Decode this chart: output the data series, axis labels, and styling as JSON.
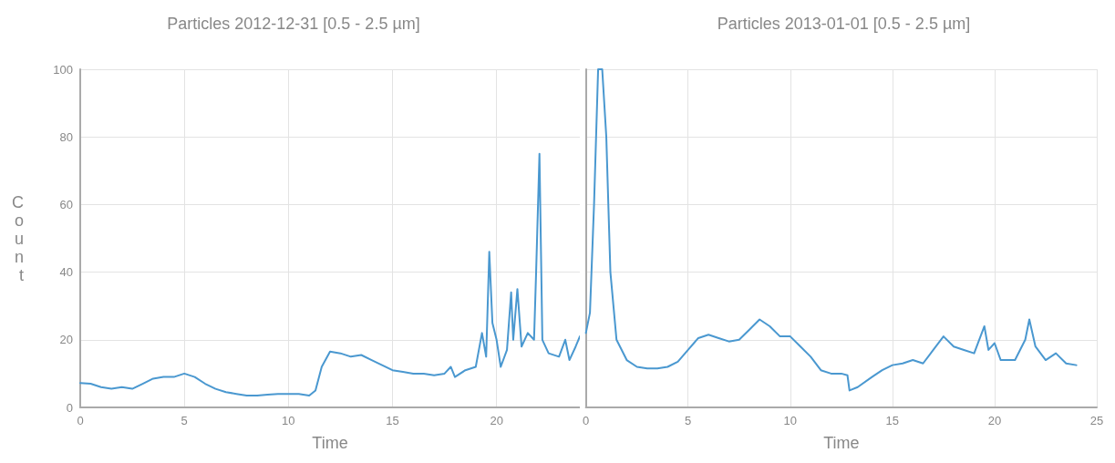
{
  "chart_data": [
    {
      "type": "line",
      "title": "Particles 2012-12-31 [0.5 - 2.5 µm]",
      "xlabel": "Time",
      "ylabel": "Count",
      "xlim": [
        0,
        24
      ],
      "xticks": [
        0,
        5,
        10,
        15,
        20
      ],
      "ylim": [
        0,
        100
      ],
      "yticks": [
        0,
        20,
        40,
        60,
        80,
        100
      ],
      "grid": true,
      "marker": "none",
      "line_style": "solid",
      "series": [
        {
          "color": "#4a98d0",
          "x": [
            0,
            0.5,
            1,
            1.5,
            2,
            2.5,
            3,
            3.5,
            4,
            4.5,
            5,
            5.5,
            6,
            6.5,
            7,
            7.5,
            8,
            8.5,
            9,
            9.5,
            10,
            10.5,
            11,
            11.3,
            11.6,
            12,
            12.5,
            13,
            13.5,
            14,
            14.5,
            15,
            15.5,
            16,
            16.5,
            17,
            17.5,
            17.8,
            18,
            18.5,
            19,
            19.3,
            19.5,
            19.65,
            19.8,
            20,
            20.2,
            20.5,
            20.7,
            20.8,
            21,
            21.2,
            21.5,
            21.8,
            21.9,
            22.06,
            22.2,
            22.5,
            23,
            23.3,
            23.5,
            23.8,
            24
          ],
          "values": [
            7.2,
            7,
            6,
            5.5,
            6,
            5.5,
            7,
            8.5,
            9,
            9,
            10,
            9,
            7,
            5.5,
            4.5,
            4,
            3.5,
            3.5,
            3.8,
            4,
            4,
            4,
            3.5,
            5,
            12,
            16.5,
            16,
            15,
            15.5,
            14,
            12.5,
            11,
            10.5,
            10,
            10,
            9.5,
            10,
            12,
            9,
            11,
            12,
            22,
            15,
            46,
            25,
            20,
            12,
            17,
            34,
            20,
            35,
            18,
            22,
            20,
            40,
            75,
            20,
            16,
            15,
            20,
            14,
            18,
            21
          ]
        }
      ]
    },
    {
      "type": "line",
      "title": "Particles 2013-01-01 [0.5 - 2.5 µm]",
      "xlabel": "Time",
      "xlim": [
        0,
        25
      ],
      "xticks": [
        0,
        5,
        10,
        15,
        20,
        25
      ],
      "ylim": [
        0,
        100
      ],
      "yticks": [
        0,
        20,
        40,
        60,
        80,
        100
      ],
      "tick_labels": "x",
      "grid": true,
      "marker": "none",
      "line_style": "solid",
      "series": [
        {
          "color": "#4a98d0",
          "x": [
            0,
            0.2,
            0.4,
            0.6,
            0.8,
            1,
            1.2,
            1.5,
            2,
            2.5,
            3,
            3.5,
            4,
            4.5,
            5,
            5.5,
            6,
            6.5,
            7,
            7.5,
            8,
            8.5,
            9,
            9.5,
            10,
            10.5,
            11,
            11.5,
            12,
            12.5,
            12.8,
            12.9,
            13.3,
            14,
            14.5,
            15,
            15.5,
            16,
            16.5,
            17,
            17.5,
            18,
            18.5,
            19,
            19.5,
            19.7,
            20,
            20.3,
            21,
            21.5,
            21.7,
            22,
            22.5,
            23,
            23.5,
            24
          ],
          "values": [
            22,
            28,
            60,
            100,
            100,
            80,
            40,
            20,
            14,
            12,
            11.5,
            11.5,
            12,
            13.5,
            17,
            20.5,
            21.5,
            20.5,
            19.5,
            20,
            23,
            26,
            24,
            21,
            21,
            18,
            15,
            11,
            10,
            10,
            9.5,
            5,
            6,
            9,
            11,
            12.5,
            13,
            14,
            13,
            17,
            21,
            18,
            17,
            16,
            24,
            17,
            19,
            14,
            14,
            20,
            26,
            18,
            14,
            16,
            13,
            12.5
          ]
        }
      ]
    }
  ]
}
